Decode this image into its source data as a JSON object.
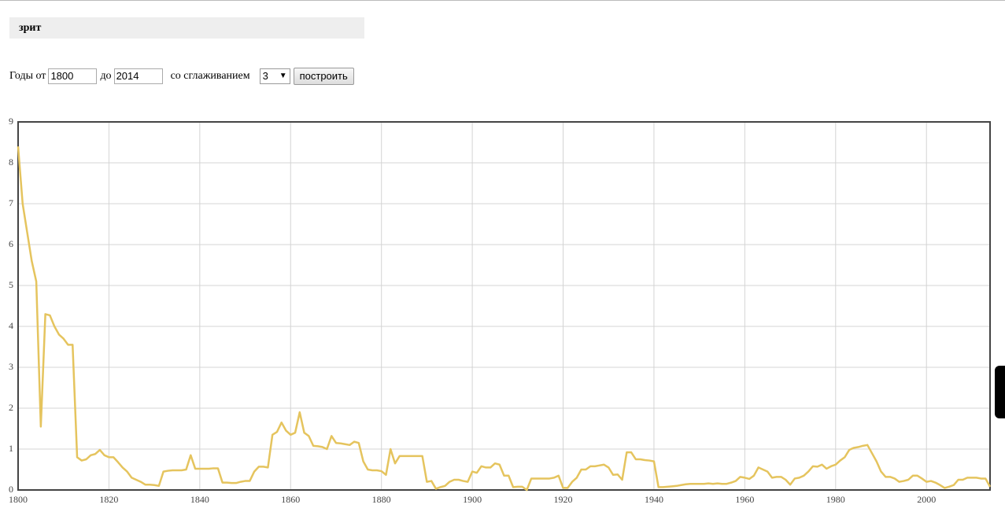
{
  "header": {
    "title": "зрит"
  },
  "form": {
    "years_from_label": "Годы от",
    "year_from": "1800",
    "years_to_label": "до",
    "year_to": "2014",
    "smoothing_label": "со сглаживанием",
    "smoothing": "3",
    "submit": "построить"
  },
  "chart_data": {
    "type": "line",
    "xlim": [
      1800,
      2014
    ],
    "ylim": [
      0,
      9
    ],
    "xticks": [
      1800,
      1820,
      1840,
      1860,
      1880,
      1900,
      1920,
      1940,
      1960,
      1980,
      2000
    ],
    "yticks": [
      0,
      1,
      2,
      3,
      4,
      5,
      6,
      7,
      8,
      9
    ],
    "grid": true,
    "x": [
      1800,
      1801,
      1802,
      1803,
      1804,
      1805,
      1806,
      1807,
      1808,
      1809,
      1810,
      1811,
      1812,
      1813,
      1814,
      1815,
      1816,
      1817,
      1818,
      1819,
      1820,
      1821,
      1822,
      1823,
      1824,
      1825,
      1826,
      1827,
      1828,
      1829,
      1830,
      1831,
      1832,
      1833,
      1834,
      1835,
      1836,
      1837,
      1838,
      1839,
      1840,
      1841,
      1842,
      1843,
      1844,
      1845,
      1846,
      1847,
      1848,
      1849,
      1850,
      1851,
      1852,
      1853,
      1854,
      1855,
      1856,
      1857,
      1858,
      1859,
      1860,
      1861,
      1862,
      1863,
      1864,
      1865,
      1866,
      1867,
      1868,
      1869,
      1870,
      1871,
      1872,
      1873,
      1874,
      1875,
      1876,
      1877,
      1878,
      1879,
      1880,
      1881,
      1882,
      1883,
      1884,
      1885,
      1886,
      1887,
      1888,
      1889,
      1890,
      1891,
      1892,
      1893,
      1894,
      1895,
      1896,
      1897,
      1898,
      1899,
      1900,
      1901,
      1902,
      1903,
      1904,
      1905,
      1906,
      1907,
      1908,
      1909,
      1910,
      1911,
      1912,
      1913,
      1914,
      1915,
      1916,
      1917,
      1918,
      1919,
      1920,
      1921,
      1922,
      1923,
      1924,
      1925,
      1926,
      1927,
      1928,
      1929,
      1930,
      1931,
      1932,
      1933,
      1934,
      1935,
      1936,
      1937,
      1938,
      1939,
      1940,
      1941,
      1942,
      1943,
      1944,
      1945,
      1946,
      1947,
      1948,
      1949,
      1950,
      1951,
      1952,
      1953,
      1954,
      1955,
      1956,
      1957,
      1958,
      1959,
      1960,
      1961,
      1962,
      1963,
      1964,
      1965,
      1966,
      1967,
      1968,
      1969,
      1970,
      1971,
      1972,
      1973,
      1974,
      1975,
      1976,
      1977,
      1978,
      1979,
      1980,
      1981,
      1982,
      1983,
      1984,
      1985,
      1986,
      1987,
      1988,
      1989,
      1990,
      1991,
      1992,
      1993,
      1994,
      1995,
      1996,
      1997,
      1998,
      1999,
      2000,
      2001,
      2002,
      2003,
      2004,
      2005,
      2006,
      2007,
      2008,
      2009,
      2010,
      2011,
      2012,
      2013,
      2014
    ],
    "series": [
      {
        "color": "#e5c45e",
        "values": [
          8.4,
          7.0,
          6.3,
          5.6,
          5.1,
          1.55,
          4.3,
          4.27,
          4.0,
          3.8,
          3.7,
          3.55,
          3.55,
          0.8,
          0.72,
          0.75,
          0.85,
          0.88,
          0.98,
          0.85,
          0.8,
          0.8,
          0.68,
          0.55,
          0.45,
          0.3,
          0.25,
          0.2,
          0.13,
          0.13,
          0.12,
          0.1,
          0.45,
          0.47,
          0.48,
          0.48,
          0.48,
          0.5,
          0.85,
          0.52,
          0.52,
          0.52,
          0.52,
          0.53,
          0.53,
          0.18,
          0.18,
          0.17,
          0.17,
          0.2,
          0.22,
          0.22,
          0.45,
          0.57,
          0.57,
          0.55,
          1.35,
          1.42,
          1.65,
          1.45,
          1.35,
          1.4,
          1.9,
          1.4,
          1.32,
          1.08,
          1.07,
          1.05,
          1.0,
          1.32,
          1.15,
          1.14,
          1.12,
          1.1,
          1.18,
          1.15,
          0.7,
          0.5,
          0.48,
          0.48,
          0.46,
          0.37,
          1.0,
          0.65,
          0.83,
          0.83,
          0.83,
          0.83,
          0.83,
          0.83,
          0.2,
          0.22,
          0.03,
          0.07,
          0.1,
          0.2,
          0.25,
          0.25,
          0.22,
          0.2,
          0.45,
          0.42,
          0.58,
          0.55,
          0.55,
          0.65,
          0.62,
          0.35,
          0.35,
          0.07,
          0.08,
          0.08,
          0.0,
          0.28,
          0.28,
          0.28,
          0.28,
          0.28,
          0.3,
          0.35,
          0.05,
          0.05,
          0.2,
          0.3,
          0.5,
          0.5,
          0.58,
          0.58,
          0.6,
          0.62,
          0.55,
          0.37,
          0.38,
          0.25,
          0.92,
          0.92,
          0.75,
          0.75,
          0.73,
          0.72,
          0.7,
          0.07,
          0.07,
          0.08,
          0.09,
          0.1,
          0.12,
          0.14,
          0.15,
          0.15,
          0.15,
          0.15,
          0.16,
          0.15,
          0.16,
          0.15,
          0.15,
          0.18,
          0.22,
          0.32,
          0.3,
          0.27,
          0.35,
          0.55,
          0.5,
          0.45,
          0.3,
          0.32,
          0.32,
          0.25,
          0.13,
          0.28,
          0.3,
          0.35,
          0.45,
          0.58,
          0.57,
          0.62,
          0.52,
          0.58,
          0.62,
          0.72,
          0.8,
          0.98,
          1.03,
          1.05,
          1.08,
          1.1,
          0.9,
          0.7,
          0.45,
          0.32,
          0.32,
          0.28,
          0.2,
          0.22,
          0.25,
          0.35,
          0.35,
          0.28,
          0.2,
          0.22,
          0.18,
          0.12,
          0.05,
          0.08,
          0.12,
          0.25,
          0.25,
          0.3,
          0.3,
          0.3,
          0.28,
          0.28,
          0.08
        ]
      }
    ]
  }
}
